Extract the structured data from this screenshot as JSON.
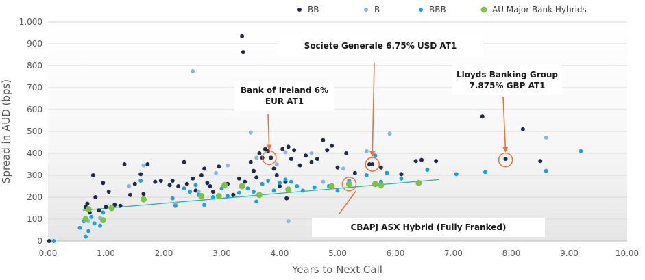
{
  "chart_data": {
    "type": "scatter",
    "xlabel": "Years to Next Call",
    "ylabel": "Spread in AUD (bps)",
    "xlim": [
      0,
      10
    ],
    "ylim": [
      0,
      1000
    ],
    "xticks": [
      "0.00",
      "1.00",
      "2.00",
      "3.00",
      "4.00",
      "5.00",
      "6.00",
      "7.00",
      "8.00",
      "9.00",
      "10.00"
    ],
    "yticks": [
      "0",
      "100",
      "200",
      "300",
      "400",
      "500",
      "600",
      "700",
      "800",
      "900",
      "1,000"
    ],
    "grid": "horizontal",
    "legend_position": "top",
    "series": [
      {
        "name": "BB",
        "color": "#1f2a4d",
        "points": [
          [
            0.02,
            0
          ],
          [
            0.65,
            155
          ],
          [
            0.68,
            170
          ],
          [
            0.72,
            130
          ],
          [
            0.78,
            300
          ],
          [
            0.82,
            200
          ],
          [
            0.88,
            140
          ],
          [
            0.95,
            265
          ],
          [
            1.0,
            155
          ],
          [
            1.05,
            225
          ],
          [
            1.15,
            165
          ],
          [
            1.25,
            160
          ],
          [
            1.32,
            350
          ],
          [
            1.42,
            210
          ],
          [
            1.5,
            260
          ],
          [
            1.6,
            305
          ],
          [
            1.65,
            215
          ],
          [
            1.72,
            350
          ],
          [
            1.85,
            270
          ],
          [
            1.95,
            275
          ],
          [
            2.1,
            255
          ],
          [
            2.15,
            275
          ],
          [
            2.25,
            250
          ],
          [
            2.35,
            360
          ],
          [
            2.4,
            260
          ],
          [
            2.5,
            285
          ],
          [
            2.55,
            230
          ],
          [
            2.65,
            300
          ],
          [
            2.7,
            330
          ],
          [
            2.75,
            265
          ],
          [
            2.8,
            250
          ],
          [
            2.85,
            225
          ],
          [
            2.95,
            340
          ],
          [
            3.1,
            260
          ],
          [
            3.2,
            210
          ],
          [
            3.3,
            285
          ],
          [
            3.35,
            935
          ],
          [
            3.37,
            862
          ],
          [
            3.4,
            270
          ],
          [
            3.5,
            360
          ],
          [
            3.55,
            320
          ],
          [
            3.6,
            290
          ],
          [
            3.65,
            400
          ],
          [
            3.7,
            380
          ],
          [
            3.75,
            420
          ],
          [
            3.8,
            410
          ],
          [
            3.85,
            380
          ],
          [
            3.9,
            330
          ],
          [
            3.95,
            300
          ],
          [
            4.0,
            250
          ],
          [
            4.05,
            420
          ],
          [
            4.1,
            270
          ],
          [
            4.12,
            195
          ],
          [
            4.15,
            430
          ],
          [
            4.2,
            375
          ],
          [
            4.25,
            415
          ],
          [
            4.35,
            345
          ],
          [
            4.45,
            390
          ],
          [
            4.55,
            360
          ],
          [
            4.65,
            375
          ],
          [
            4.75,
            460
          ],
          [
            4.82,
            415
          ],
          [
            4.9,
            435
          ],
          [
            5.0,
            335
          ],
          [
            5.15,
            400
          ],
          [
            5.3,
            310
          ],
          [
            5.55,
            350
          ],
          [
            5.6,
            350
          ],
          [
            5.75,
            335
          ],
          [
            5.85,
            310
          ],
          [
            6.1,
            305
          ],
          [
            6.35,
            365
          ],
          [
            6.45,
            370
          ],
          [
            6.7,
            365
          ],
          [
            7.5,
            568
          ],
          [
            7.9,
            375
          ],
          [
            8.2,
            510
          ],
          [
            8.5,
            365
          ]
        ]
      },
      {
        "name": "B",
        "color": "#8eb4e3",
        "points": [
          [
            0.7,
            90
          ],
          [
            0.9,
            105
          ],
          [
            1.4,
            250
          ],
          [
            1.65,
            345
          ],
          [
            2.2,
            170
          ],
          [
            2.5,
            775
          ],
          [
            2.6,
            225
          ],
          [
            2.9,
            310
          ],
          [
            3.1,
            345
          ],
          [
            3.5,
            495
          ],
          [
            3.6,
            380
          ],
          [
            3.95,
            350
          ],
          [
            4.1,
            405
          ],
          [
            4.15,
            90
          ],
          [
            4.55,
            400
          ],
          [
            4.75,
            270
          ],
          [
            5.1,
            330
          ],
          [
            5.5,
            410
          ],
          [
            5.9,
            490
          ],
          [
            8.6,
            472
          ]
        ]
      },
      {
        "name": "BBB",
        "color": "#1aa3e0",
        "points": [
          [
            0.1,
            0
          ],
          [
            0.55,
            60
          ],
          [
            0.62,
            90
          ],
          [
            0.65,
            20
          ],
          [
            0.7,
            45
          ],
          [
            0.75,
            110
          ],
          [
            0.8,
            80
          ],
          [
            0.9,
            70
          ],
          [
            0.95,
            130
          ],
          [
            1.1,
            150
          ],
          [
            1.6,
            275
          ],
          [
            2.15,
            195
          ],
          [
            2.2,
            160
          ],
          [
            2.35,
            240
          ],
          [
            2.45,
            225
          ],
          [
            2.55,
            255
          ],
          [
            2.6,
            210
          ],
          [
            2.7,
            165
          ],
          [
            2.85,
            200
          ],
          [
            3.0,
            240
          ],
          [
            3.1,
            205
          ],
          [
            3.3,
            220
          ],
          [
            3.45,
            240
          ],
          [
            3.55,
            225
          ],
          [
            3.6,
            180
          ],
          [
            3.7,
            260
          ],
          [
            3.8,
            275
          ],
          [
            3.9,
            230
          ],
          [
            4.0,
            265
          ],
          [
            4.1,
            280
          ],
          [
            4.2,
            270
          ],
          [
            4.3,
            250
          ],
          [
            4.4,
            230
          ],
          [
            4.6,
            245
          ],
          [
            4.85,
            250
          ],
          [
            5.0,
            230
          ],
          [
            5.2,
            275
          ],
          [
            5.5,
            300
          ],
          [
            5.65,
            390
          ],
          [
            5.75,
            270
          ],
          [
            5.85,
            310
          ],
          [
            6.1,
            285
          ],
          [
            6.55,
            325
          ],
          [
            7.05,
            305
          ],
          [
            7.55,
            315
          ],
          [
            8.6,
            320
          ],
          [
            9.2,
            410
          ]
        ]
      },
      {
        "name": "AU Major Bank Hybrids",
        "color": "#7dc242",
        "points": [
          [
            0.65,
            100
          ],
          [
            0.7,
            145
          ],
          [
            0.95,
            95
          ],
          [
            1.1,
            150
          ],
          [
            1.65,
            190
          ],
          [
            2.65,
            205
          ],
          [
            2.95,
            205
          ],
          [
            3.05,
            255
          ],
          [
            3.35,
            250
          ],
          [
            3.65,
            210
          ],
          [
            4.15,
            235
          ],
          [
            4.9,
            250
          ],
          [
            5.2,
            260
          ],
          [
            5.65,
            260
          ],
          [
            5.75,
            255
          ],
          [
            6.4,
            265
          ]
        ]
      }
    ],
    "trendline": {
      "color": "#2ab3a8",
      "points": [
        [
          0.6,
          140
        ],
        [
          6.75,
          280
        ]
      ]
    },
    "annotations": [
      {
        "text_lines": [
          "Bank of Ireland 6%",
          "EUR AT1"
        ],
        "target": [
          3.82,
          380
        ]
      },
      {
        "text_lines": [
          "Societe Generale 6.75% USD AT1"
        ],
        "target": [
          5.6,
          350
        ]
      },
      {
        "text_lines": [
          "Lloyds Banking Group",
          "7.875% GBP AT1"
        ],
        "target": [
          7.9,
          370
        ]
      },
      {
        "text_lines": [
          "CBAPJ ASX Hybrid (Fully Franked)"
        ],
        "target": [
          5.2,
          260
        ]
      }
    ]
  }
}
